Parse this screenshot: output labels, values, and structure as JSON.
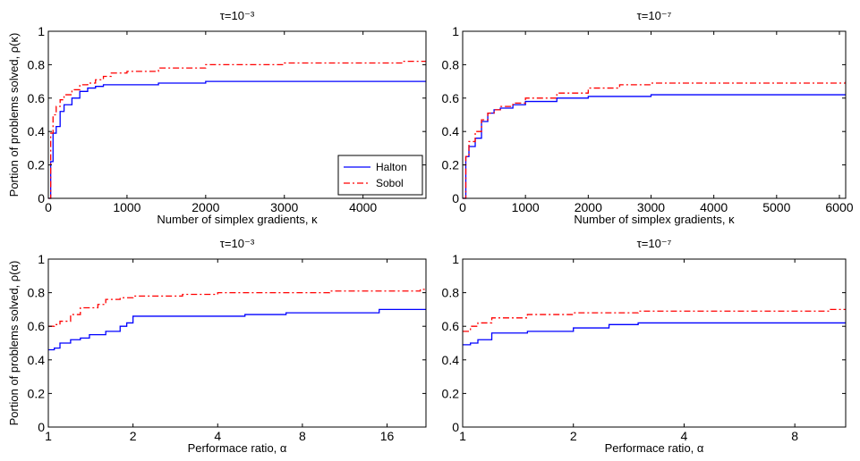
{
  "chart_data": [
    {
      "type": "line",
      "title": "τ=10⁻³",
      "xlabel": "Number of simplex gradients, κ",
      "ylabel": "Portion of problems solved, ρ(κ)",
      "xscale": "linear",
      "xlim": [
        0,
        4800
      ],
      "ylim": [
        0,
        1
      ],
      "xticks": [
        0,
        1000,
        2000,
        3000,
        4000
      ],
      "xtick_labels": [
        "0",
        "1000",
        "2000",
        "3000",
        "4000"
      ],
      "yticks": [
        0,
        0.2,
        0.4,
        0.6,
        0.8,
        1
      ],
      "ytick_labels": [
        "0",
        "0.2",
        "0.4",
        "0.6",
        "0.8",
        "1"
      ],
      "legend": {
        "position": "bottom-right",
        "entries": [
          "Halton",
          "Sobol"
        ]
      },
      "series": [
        {
          "name": "Halton",
          "color": "#0000ff",
          "style": "solid",
          "step": true,
          "x": [
            0,
            30,
            60,
            100,
            150,
            200,
            300,
            400,
            500,
            600,
            700,
            800,
            1000,
            1400,
            2000,
            3000,
            4800
          ],
          "y": [
            0,
            0.22,
            0.39,
            0.43,
            0.52,
            0.56,
            0.6,
            0.64,
            0.66,
            0.67,
            0.68,
            0.68,
            0.68,
            0.69,
            0.7,
            0.7,
            0.7
          ]
        },
        {
          "name": "Sobol",
          "color": "#ff0000",
          "style": "dashdot",
          "step": true,
          "x": [
            0,
            30,
            60,
            100,
            150,
            200,
            300,
            400,
            500,
            600,
            700,
            800,
            1000,
            1400,
            2000,
            3000,
            4500,
            4800
          ],
          "y": [
            0,
            0.39,
            0.5,
            0.55,
            0.59,
            0.62,
            0.65,
            0.68,
            0.69,
            0.71,
            0.73,
            0.75,
            0.76,
            0.78,
            0.8,
            0.81,
            0.82,
            0.82
          ]
        }
      ]
    },
    {
      "type": "line",
      "title": "τ=10⁻⁷",
      "xlabel": "Number of simplex gradients, κ",
      "ylabel": "",
      "xscale": "linear",
      "xlim": [
        0,
        6100
      ],
      "ylim": [
        0,
        1
      ],
      "xticks": [
        0,
        1000,
        2000,
        3000,
        4000,
        5000,
        6000
      ],
      "xtick_labels": [
        "0",
        "1000",
        "2000",
        "3000",
        "4000",
        "5000",
        "6000"
      ],
      "yticks": [
        0,
        0.2,
        0.4,
        0.6,
        0.8,
        1
      ],
      "ytick_labels": [
        "0",
        "0.2",
        "0.4",
        "0.6",
        "0.8",
        "1"
      ],
      "series": [
        {
          "name": "Halton",
          "color": "#0000ff",
          "style": "solid",
          "step": true,
          "x": [
            0,
            50,
            100,
            200,
            300,
            400,
            500,
            600,
            800,
            1000,
            1500,
            2000,
            3000,
            6100
          ],
          "y": [
            0,
            0.25,
            0.31,
            0.36,
            0.46,
            0.51,
            0.53,
            0.54,
            0.56,
            0.58,
            0.6,
            0.61,
            0.62,
            0.62
          ]
        },
        {
          "name": "Sobol",
          "color": "#ff0000",
          "style": "dashdot",
          "step": true,
          "x": [
            0,
            50,
            100,
            200,
            300,
            400,
            500,
            600,
            800,
            1000,
            1500,
            2000,
            2500,
            3000,
            6100
          ],
          "y": [
            0,
            0.25,
            0.34,
            0.4,
            0.47,
            0.51,
            0.53,
            0.55,
            0.57,
            0.6,
            0.63,
            0.66,
            0.68,
            0.69,
            0.7
          ]
        }
      ]
    },
    {
      "type": "line",
      "title": "τ=10⁻³",
      "xlabel": "Performace ratio, α",
      "ylabel": "Portion of problems solved, ρ(α)",
      "xscale": "log2",
      "xlim": [
        1,
        22
      ],
      "ylim": [
        0,
        1
      ],
      "xticks": [
        1,
        2,
        4,
        8,
        16
      ],
      "xtick_labels": [
        "1",
        "2",
        "4",
        "8",
        "16"
      ],
      "yticks": [
        0,
        0.2,
        0.4,
        0.6,
        0.8,
        1
      ],
      "ytick_labels": [
        "0",
        "0.2",
        "0.4",
        "0.6",
        "0.8",
        "1"
      ],
      "series": [
        {
          "name": "Halton",
          "color": "#0000ff",
          "style": "solid",
          "step": true,
          "x": [
            1,
            1.05,
            1.1,
            1.2,
            1.3,
            1.4,
            1.6,
            1.8,
            1.9,
            2.0,
            3.0,
            4.0,
            5.0,
            7.0,
            10,
            15,
            22
          ],
          "y": [
            0.46,
            0.47,
            0.5,
            0.52,
            0.53,
            0.55,
            0.57,
            0.6,
            0.62,
            0.66,
            0.66,
            0.66,
            0.67,
            0.68,
            0.68,
            0.7,
            0.7
          ]
        },
        {
          "name": "Sobol",
          "color": "#ff0000",
          "style": "dashdot",
          "step": true,
          "x": [
            1,
            1.05,
            1.1,
            1.2,
            1.3,
            1.5,
            1.6,
            1.8,
            2.0,
            3.0,
            4.0,
            6.0,
            10,
            16,
            21,
            22
          ],
          "y": [
            0.6,
            0.61,
            0.63,
            0.67,
            0.71,
            0.73,
            0.76,
            0.77,
            0.78,
            0.79,
            0.8,
            0.8,
            0.81,
            0.81,
            0.82,
            0.82
          ]
        }
      ]
    },
    {
      "type": "line",
      "title": "τ=10⁻⁷",
      "xlabel": "Performace ratio, α",
      "ylabel": "",
      "xscale": "log2",
      "xlim": [
        1,
        11
      ],
      "ylim": [
        0,
        1
      ],
      "xticks": [
        1,
        2,
        4,
        8
      ],
      "xtick_labels": [
        "1",
        "2",
        "4",
        "8"
      ],
      "yticks": [
        0,
        0.2,
        0.4,
        0.6,
        0.8,
        1
      ],
      "ytick_labels": [
        "0",
        "0.2",
        "0.4",
        "0.6",
        "0.8",
        "1"
      ],
      "series": [
        {
          "name": "Halton",
          "color": "#0000ff",
          "style": "solid",
          "step": true,
          "x": [
            1,
            1.05,
            1.1,
            1.2,
            1.5,
            2.0,
            2.5,
            3.0,
            5.0,
            11
          ],
          "y": [
            0.49,
            0.5,
            0.52,
            0.56,
            0.57,
            0.59,
            0.61,
            0.62,
            0.62,
            0.62
          ]
        },
        {
          "name": "Sobol",
          "color": "#ff0000",
          "style": "dashdot",
          "step": true,
          "x": [
            1,
            1.05,
            1.1,
            1.2,
            1.5,
            2.0,
            3.0,
            5.0,
            10,
            11
          ],
          "y": [
            0.57,
            0.6,
            0.62,
            0.65,
            0.67,
            0.68,
            0.69,
            0.69,
            0.7,
            0.7
          ]
        }
      ]
    }
  ]
}
